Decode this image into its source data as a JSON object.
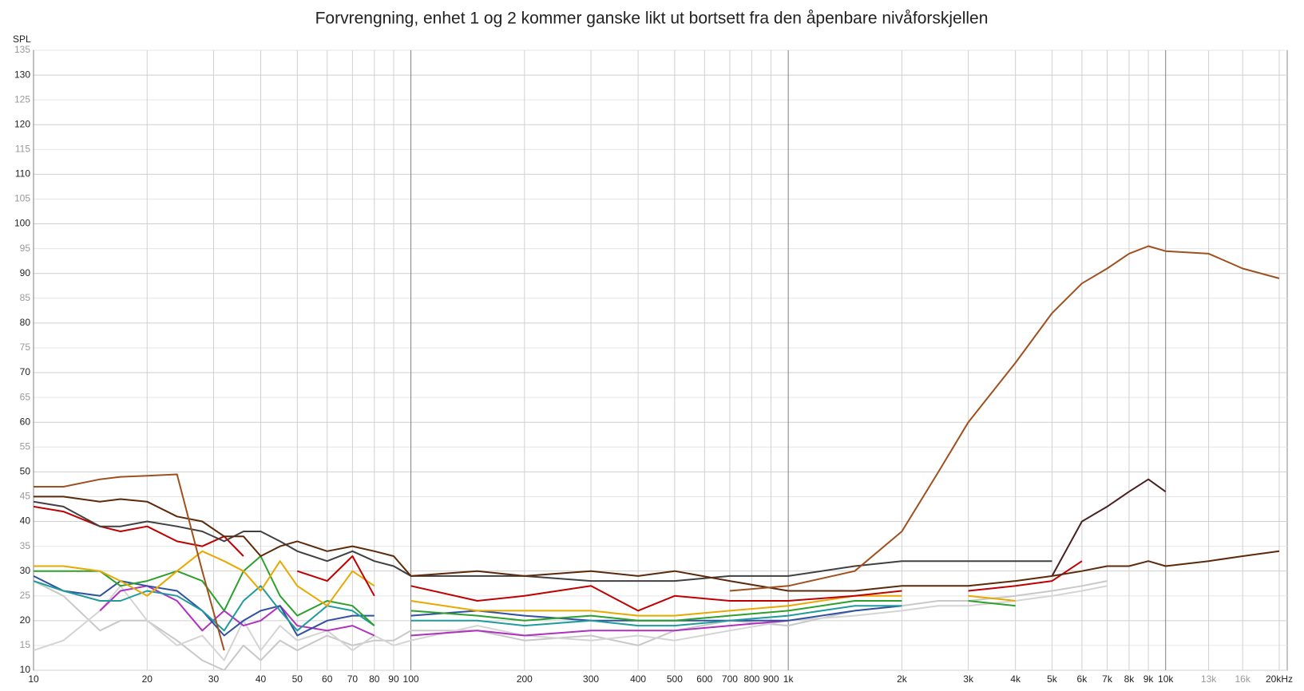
{
  "chart_data": {
    "type": "line",
    "title": "Forvrengning, enhet 1 og 2 kommer ganske likt ut bortsett fra den åpenbare nivåforskjellen",
    "y_label": "SPL",
    "log_x": true,
    "grid": true,
    "xlim": [
      10,
      21000
    ],
    "ylim": [
      10,
      135
    ],
    "xticks": [
      10,
      20,
      30,
      40,
      50,
      60,
      70,
      80,
      90,
      100,
      200,
      300,
      400,
      500,
      600,
      700,
      800,
      900,
      {
        "value": 1000,
        "label": "1k"
      },
      {
        "value": 2000,
        "label": "2k"
      },
      {
        "value": 3000,
        "label": "3k"
      },
      {
        "value": 4000,
        "label": "4k"
      },
      {
        "value": 5000,
        "label": "5k"
      },
      {
        "value": 6000,
        "label": "6k"
      },
      {
        "value": 7000,
        "label": "7k"
      },
      {
        "value": 8000,
        "label": "8k"
      },
      {
        "value": 9000,
        "label": "9k"
      },
      {
        "value": 10000,
        "label": "10k"
      },
      {
        "value": 13000,
        "label": "13k"
      },
      {
        "value": 16000,
        "label": "16k"
      },
      {
        "value": 20000,
        "label": "20kHz"
      }
    ],
    "yticks": [
      10,
      15,
      20,
      25,
      30,
      35,
      40,
      45,
      50,
      55,
      60,
      65,
      70,
      75,
      80,
      85,
      90,
      95,
      100,
      105,
      110,
      115,
      120,
      125,
      130,
      135
    ],
    "x": [
      10,
      12,
      15,
      17,
      20,
      24,
      28,
      32,
      36,
      40,
      45,
      50,
      60,
      70,
      80,
      90,
      100,
      150,
      200,
      300,
      400,
      500,
      700,
      1000,
      1500,
      2000,
      2500,
      3000,
      4000,
      5000,
      6000,
      7000,
      8000,
      9000,
      10000,
      13000,
      16000,
      20000
    ],
    "series": [
      {
        "color": "#c8c8c8",
        "values": [
          28,
          25,
          18,
          20,
          20,
          16,
          12,
          10,
          15,
          12,
          16,
          14,
          17,
          15,
          16,
          16,
          18,
          18,
          16,
          17,
          15,
          18,
          20,
          19,
          22,
          23,
          24,
          24,
          25,
          26,
          27,
          28,
          null,
          null,
          null,
          null,
          null,
          null
        ]
      },
      {
        "color": "#d4d4d4",
        "values": [
          14,
          16,
          22,
          27,
          20,
          15,
          17,
          12,
          20,
          14,
          19,
          16,
          18,
          14,
          17,
          15,
          16,
          19,
          17,
          16,
          17,
          16,
          18,
          20,
          21,
          22,
          23,
          23,
          24,
          25,
          26,
          27,
          null,
          null,
          null,
          null,
          null,
          null
        ]
      },
      {
        "color": "#b030c0",
        "values": [
          28,
          null,
          22,
          26,
          27,
          24,
          18,
          22,
          19,
          20,
          23,
          19,
          18,
          19,
          17,
          null,
          17,
          18,
          17,
          18,
          18,
          18,
          19,
          20,
          null,
          null,
          null,
          null,
          null,
          null,
          null,
          null,
          null,
          null,
          null,
          null,
          null,
          null
        ]
      },
      {
        "color": "#3050a0",
        "values": [
          29,
          26,
          25,
          28,
          27,
          26,
          22,
          17,
          20,
          22,
          23,
          17,
          20,
          21,
          21,
          null,
          21,
          22,
          21,
          20,
          20,
          20,
          20,
          20,
          22,
          23,
          null,
          24,
          null,
          null,
          null,
          null,
          null,
          null,
          null,
          null,
          null,
          null
        ]
      },
      {
        "color": "#1f9b9b",
        "values": [
          28,
          26,
          24,
          24,
          26,
          25,
          22,
          18,
          24,
          27,
          22,
          18,
          23,
          22,
          19,
          null,
          20,
          20,
          19,
          20,
          19,
          19,
          20,
          21,
          23,
          23,
          null,
          24,
          null,
          null,
          null,
          null,
          null,
          null,
          null,
          null,
          null,
          null
        ]
      },
      {
        "color": "#2ca02c",
        "values": [
          30,
          30,
          30,
          27,
          28,
          30,
          28,
          22,
          30,
          33,
          25,
          21,
          24,
          23,
          19,
          null,
          22,
          21,
          20,
          21,
          20,
          20,
          21,
          22,
          24,
          24,
          null,
          24,
          23,
          null,
          null,
          null,
          null,
          null,
          null,
          null,
          null,
          null
        ]
      },
      {
        "color": "#e8a800",
        "values": [
          31,
          31,
          30,
          28,
          25,
          30,
          34,
          32,
          30,
          26,
          32,
          27,
          23,
          30,
          27,
          null,
          24,
          22,
          22,
          22,
          21,
          21,
          22,
          23,
          25,
          25,
          null,
          25,
          24,
          null,
          null,
          null,
          null,
          null,
          null,
          null,
          null,
          null
        ]
      },
      {
        "color": "#c00000",
        "values": [
          43,
          42,
          39,
          38,
          39,
          36,
          35,
          37,
          33,
          null,
          null,
          30,
          28,
          33,
          25,
          null,
          27,
          24,
          25,
          27,
          22,
          25,
          24,
          24,
          25,
          26,
          null,
          26,
          27,
          28,
          32,
          null,
          null,
          null,
          null,
          null,
          null,
          null
        ]
      },
      {
        "color": "#404040",
        "values": [
          44,
          43,
          39,
          39,
          40,
          39,
          38,
          36,
          38,
          38,
          36,
          34,
          32,
          34,
          32,
          31,
          29,
          29,
          29,
          28,
          28,
          28,
          29,
          29,
          31,
          32,
          32,
          32,
          32,
          32,
          null,
          null,
          null,
          null,
          null,
          null,
          null,
          null
        ]
      },
      {
        "color": "#4a2020",
        "values": [
          null,
          null,
          null,
          null,
          null,
          null,
          null,
          null,
          null,
          null,
          null,
          null,
          null,
          null,
          null,
          null,
          null,
          null,
          null,
          null,
          null,
          null,
          null,
          null,
          null,
          null,
          null,
          null,
          null,
          29,
          40,
          43,
          46,
          48.5,
          46,
          null,
          null,
          null
        ]
      },
      {
        "color": "#5c2a0a",
        "values": [
          45,
          45,
          44,
          44.5,
          44,
          41,
          40,
          37,
          37,
          33,
          35,
          36,
          34,
          35,
          34,
          33,
          29,
          30,
          29,
          30,
          29,
          30,
          28,
          26,
          26,
          27,
          27,
          27,
          28,
          29,
          30,
          31,
          31,
          32,
          31,
          32,
          33,
          34
        ]
      },
      {
        "color": "#a0501e",
        "values": [
          47,
          47,
          48.5,
          49,
          49.2,
          49.5,
          30,
          14,
          null,
          null,
          null,
          null,
          null,
          null,
          null,
          null,
          null,
          null,
          null,
          null,
          null,
          null,
          26,
          27,
          30,
          38,
          50,
          60,
          72,
          82,
          88,
          91,
          94,
          95.5,
          94.5,
          94,
          91,
          89
        ]
      }
    ]
  }
}
